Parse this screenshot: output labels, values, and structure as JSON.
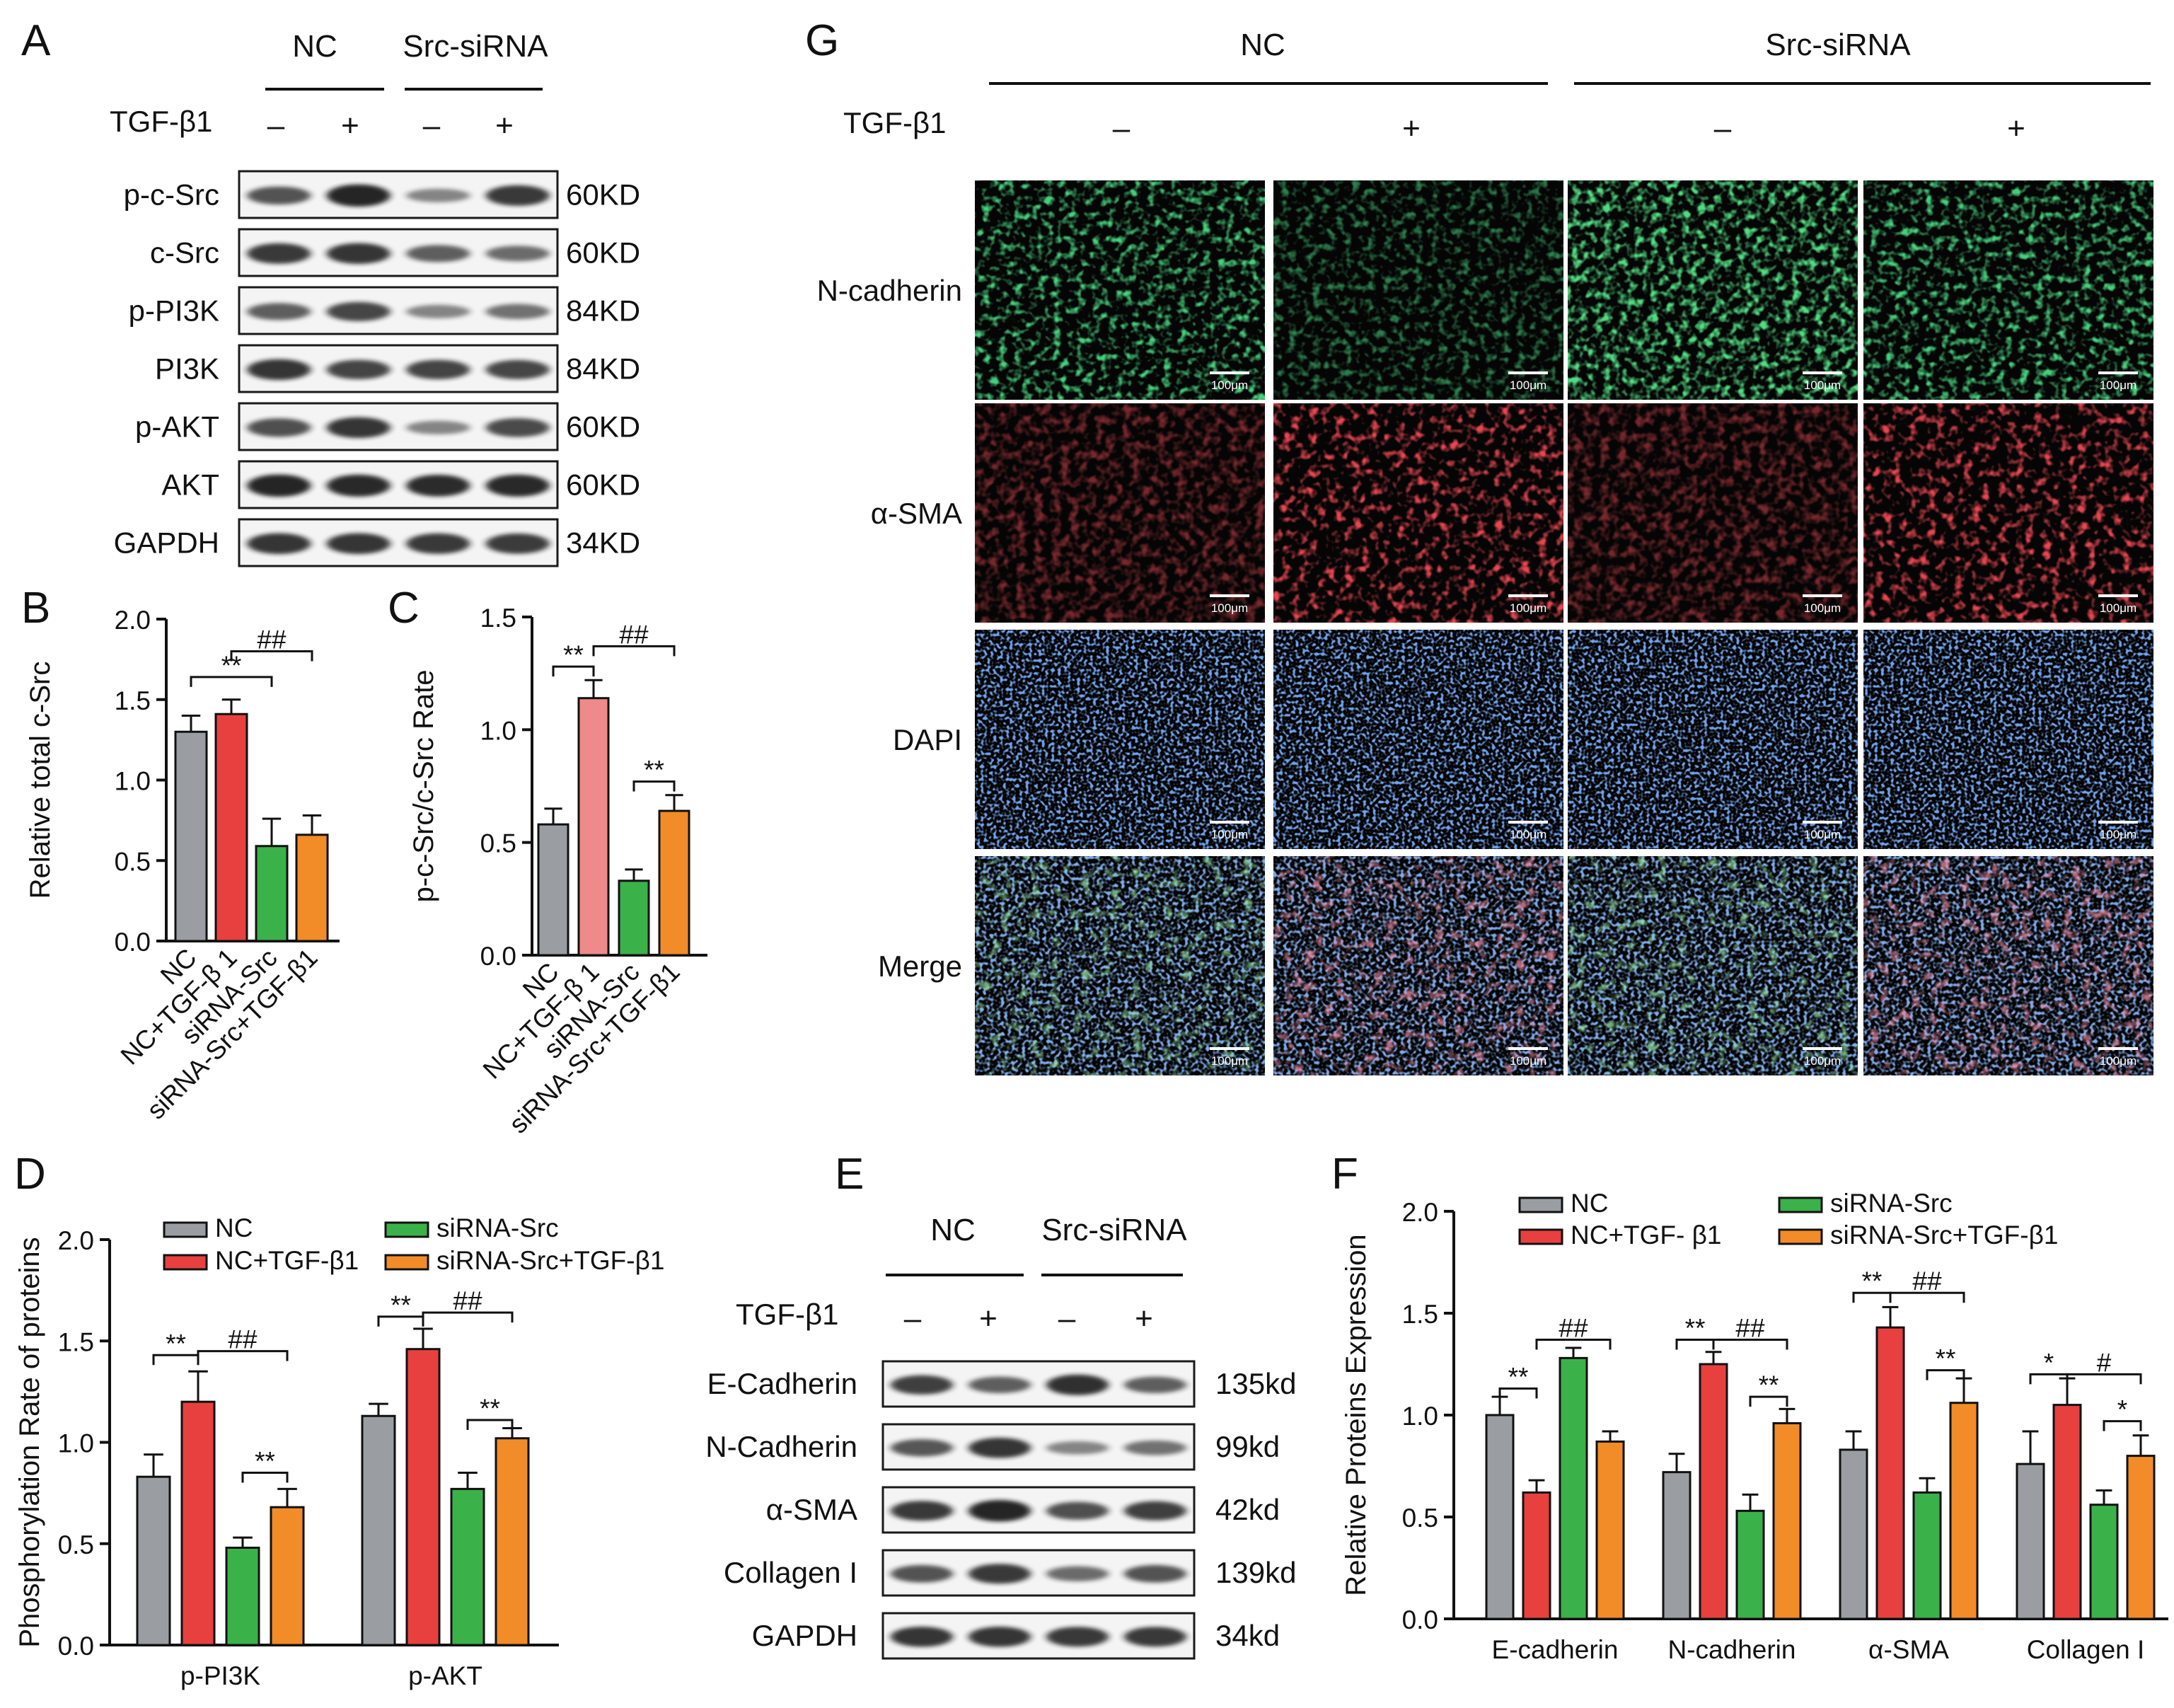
{
  "panels": {
    "a": "A",
    "b": "B",
    "c": "C",
    "d": "D",
    "e": "E",
    "f": "F",
    "g": "G"
  },
  "blot_a": {
    "groups": [
      "NC",
      "Src-siRNA"
    ],
    "treatment_label": "TGF-β1",
    "signs": [
      "–",
      "+",
      "–",
      "+"
    ],
    "rows": [
      {
        "label": "p-c-Src",
        "size": "60KD",
        "intensity": [
          0.62,
          0.92,
          0.3,
          0.8
        ]
      },
      {
        "label": "c-Src",
        "size": "60KD",
        "intensity": [
          0.8,
          0.82,
          0.55,
          0.45
        ]
      },
      {
        "label": "p-PI3K",
        "size": "84KD",
        "intensity": [
          0.55,
          0.7,
          0.3,
          0.42
        ]
      },
      {
        "label": "PI3K",
        "size": "84KD",
        "intensity": [
          0.82,
          0.72,
          0.72,
          0.7
        ]
      },
      {
        "label": "p-AKT",
        "size": "60KD",
        "intensity": [
          0.65,
          0.82,
          0.3,
          0.68
        ]
      },
      {
        "label": "AKT",
        "size": "60KD",
        "intensity": [
          0.92,
          0.9,
          0.88,
          0.9
        ]
      },
      {
        "label": "GAPDH",
        "size": "34KD",
        "intensity": [
          0.82,
          0.82,
          0.8,
          0.78
        ]
      }
    ]
  },
  "blot_e": {
    "groups": [
      "NC",
      "Src-siRNA"
    ],
    "treatment_label": "TGF-β1",
    "signs": [
      "–",
      "+",
      "–",
      "+"
    ],
    "rows": [
      {
        "label": "E-Cadherin",
        "size": "135kd",
        "intensity": [
          0.75,
          0.55,
          0.85,
          0.55
        ]
      },
      {
        "label": "N-Cadherin",
        "size": "99kd",
        "intensity": [
          0.6,
          0.82,
          0.3,
          0.42
        ]
      },
      {
        "label": "α-SMA",
        "size": "42kd",
        "intensity": [
          0.8,
          0.92,
          0.65,
          0.75
        ]
      },
      {
        "label": "Collagen I",
        "size": "139kd",
        "intensity": [
          0.62,
          0.8,
          0.45,
          0.62
        ]
      },
      {
        "label": "GAPDH",
        "size": "34kd",
        "intensity": [
          0.82,
          0.82,
          0.8,
          0.8
        ]
      }
    ]
  },
  "legend": {
    "nc": "NC",
    "nc_tgf_d": "NC+TGF-β1",
    "nc_tgf_f": "NC+TGF- β1",
    "si": "siRNA-Src",
    "si_tgf": "siRNA-Src+TGF-β1"
  },
  "colors": {
    "nc": "#9a9ea3",
    "nc_tgf_b": "#e8403f",
    "nc_tgf_c": "#ee8a8a",
    "si": "#3bb14a",
    "si_tgf": "#f28c28",
    "green_channel": "#1fa43a",
    "red_channel": "#c8121b",
    "blue_channel": "#2a5bd8"
  },
  "chart_data": [
    {
      "id": "B",
      "type": "bar",
      "ylabel": "Relative total c-Src",
      "ylim": [
        0,
        2.0
      ],
      "yticks": [
        "0.0",
        "0.5",
        "1.0",
        "1.5",
        "2.0"
      ],
      "categories": [
        "NC",
        "NC+TGF-β 1",
        "siRNA-Src",
        "siRNA-Src+TGF-β1"
      ],
      "values": [
        1.3,
        1.41,
        0.59,
        0.66
      ],
      "errors": [
        0.1,
        0.09,
        0.17,
        0.12
      ],
      "sig": [
        {
          "from": 0,
          "to": 2,
          "y": 1.64,
          "label": "**"
        },
        {
          "from": 1,
          "to": 3,
          "y": 1.8,
          "label": "##"
        }
      ]
    },
    {
      "id": "C",
      "type": "bar",
      "ylabel": "p-c-Src/c-Src Rate",
      "ylim": [
        0,
        1.5
      ],
      "yticks": [
        "0.0",
        "0.5",
        "1.0",
        "1.5"
      ],
      "categories": [
        "NC",
        "NC+TGF-β 1",
        "siRNA-Src",
        "siRNA-Src+TGF-β1"
      ],
      "values": [
        0.58,
        1.14,
        0.33,
        0.64
      ],
      "errors": [
        0.07,
        0.08,
        0.05,
        0.07
      ],
      "sig": [
        {
          "from": 0,
          "to": 1,
          "y": 1.28,
          "label": "**"
        },
        {
          "from": 1,
          "to": 3,
          "y": 1.37,
          "label": "##"
        },
        {
          "from": 2,
          "to": 3,
          "y": 0.77,
          "label": "**"
        }
      ]
    },
    {
      "id": "D",
      "type": "bar",
      "ylabel": "Phosphorylation Rate of proteins",
      "ylim": [
        0,
        2.0
      ],
      "yticks": [
        "0.0",
        "0.5",
        "1.0",
        "1.5",
        "2.0"
      ],
      "categories": [
        "p-PI3K",
        "p-AKT"
      ],
      "series": [
        {
          "name": "NC",
          "values": [
            0.83,
            1.13
          ],
          "errors": [
            0.11,
            0.06
          ]
        },
        {
          "name": "NC+TGF-β1",
          "values": [
            1.2,
            1.46
          ],
          "errors": [
            0.15,
            0.1
          ]
        },
        {
          "name": "siRNA-Src",
          "values": [
            0.48,
            0.77
          ],
          "errors": [
            0.05,
            0.08
          ]
        },
        {
          "name": "siRNA-Src+TGF-β1",
          "values": [
            0.68,
            1.02
          ],
          "errors": [
            0.09,
            0.05
          ]
        }
      ],
      "sig": [
        {
          "group": 0,
          "from": 0,
          "to": 1,
          "y": 1.43,
          "label": "**"
        },
        {
          "group": 0,
          "from": 1,
          "to": 3,
          "y": 1.45,
          "label": "##"
        },
        {
          "group": 0,
          "from": 2,
          "to": 3,
          "y": 0.85,
          "label": "**"
        },
        {
          "group": 1,
          "from": 0,
          "to": 1,
          "y": 1.62,
          "label": "**"
        },
        {
          "group": 1,
          "from": 1,
          "to": 3,
          "y": 1.64,
          "label": "##"
        },
        {
          "group": 1,
          "from": 2,
          "to": 3,
          "y": 1.11,
          "label": "**"
        }
      ]
    },
    {
      "id": "F",
      "type": "bar",
      "ylabel": "Relative Proteins Expression",
      "ylim": [
        0,
        2.0
      ],
      "yticks": [
        "0.0",
        "0.5",
        "1.0",
        "1.5",
        "2.0"
      ],
      "categories": [
        "E-cadherin",
        "N-cadherin",
        "α-SMA",
        "Collagen I"
      ],
      "series": [
        {
          "name": "NC",
          "values": [
            1.0,
            0.72,
            0.83,
            0.76
          ],
          "errors": [
            0.09,
            0.09,
            0.09,
            0.16
          ]
        },
        {
          "name": "NC+TGF- β1",
          "values": [
            0.62,
            1.25,
            1.43,
            1.05
          ],
          "errors": [
            0.06,
            0.06,
            0.1,
            0.13
          ]
        },
        {
          "name": "siRNA-Src",
          "values": [
            1.28,
            0.53,
            0.62,
            0.56
          ],
          "errors": [
            0.05,
            0.08,
            0.07,
            0.07
          ]
        },
        {
          "name": "siRNA-Src+TGF-β1",
          "values": [
            0.87,
            0.96,
            1.06,
            0.8
          ],
          "errors": [
            0.05,
            0.07,
            0.12,
            0.1
          ]
        }
      ],
      "sig": [
        {
          "group": 0,
          "from": 0,
          "to": 1,
          "y": 1.13,
          "label": "**"
        },
        {
          "group": 0,
          "from": 1,
          "to": 3,
          "y": 1.37,
          "label": "##"
        },
        {
          "group": 1,
          "from": 0,
          "to": 1,
          "y": 1.37,
          "label": "**"
        },
        {
          "group": 1,
          "from": 1,
          "to": 3,
          "y": 1.37,
          "label": "##"
        },
        {
          "group": 1,
          "from": 2,
          "to": 3,
          "y": 1.09,
          "label": "**"
        },
        {
          "group": 2,
          "from": 0,
          "to": 1,
          "y": 1.6,
          "label": "**"
        },
        {
          "group": 2,
          "from": 1,
          "to": 3,
          "y": 1.6,
          "label": "##"
        },
        {
          "group": 2,
          "from": 2,
          "to": 3,
          "y": 1.22,
          "label": "**"
        },
        {
          "group": 3,
          "from": 0,
          "to": 1,
          "y": 1.2,
          "label": "*"
        },
        {
          "group": 3,
          "from": 1,
          "to": 3,
          "y": 1.2,
          "label": "#"
        },
        {
          "group": 3,
          "from": 2,
          "to": 3,
          "y": 0.97,
          "label": "*"
        }
      ]
    }
  ],
  "micro": {
    "groups": [
      "NC",
      "Src-siRNA"
    ],
    "treatment_label": "TGF-β1",
    "signs": [
      "–",
      "+",
      "–",
      "+"
    ],
    "row_labels": [
      "N-cadherin",
      "α-SMA",
      "DAPI",
      "Merge"
    ],
    "row_channels": [
      "green",
      "red",
      "blue",
      "merge"
    ],
    "scale_label": "100μm"
  }
}
